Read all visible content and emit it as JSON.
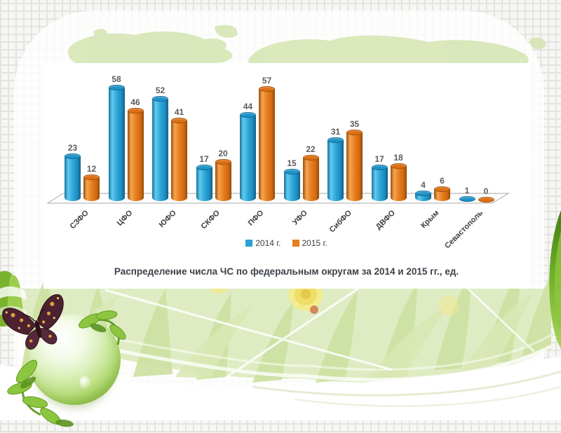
{
  "chart_data": {
    "type": "bar",
    "style": "3d-cylinder-pairs",
    "title": "Распределение числа ЧС по федеральным округам за 2014 и 2015 гг., ед.",
    "categories": [
      "СЗФО",
      "ЦФО",
      "ЮФО",
      "СКФО",
      "ПФО",
      "УФО",
      "СибФО",
      "ДВФО",
      "Крым",
      "Севастополь"
    ],
    "series": [
      {
        "name": "2014 г.",
        "color": "#2BA2D6",
        "values": [
          23,
          58,
          52,
          17,
          44,
          15,
          31,
          17,
          4,
          1
        ]
      },
      {
        "name": "2015 г.",
        "color": "#E87D1E",
        "values": [
          12,
          46,
          41,
          20,
          57,
          22,
          35,
          18,
          6,
          0
        ]
      }
    ],
    "value_labels": true,
    "value_label_color": "#5c5c5c",
    "legend_position": "bottom",
    "xlabel": "",
    "ylabel": "",
    "ylim": [
      0,
      60
    ],
    "grid": false
  },
  "decorations": {
    "icons": [
      "world-map",
      "grass-band",
      "dandelion-flower",
      "swoosh-lines",
      "green-glossy-sphere",
      "leaves",
      "butterfly",
      "grass-left-edge",
      "grass-right-edge"
    ],
    "theme_colors": {
      "leaf_green": "#8cc63e",
      "pale_green": "#dfecc3",
      "map_green": "#d2e3ad",
      "dandelion_yellow": "#f0e36b"
    }
  }
}
